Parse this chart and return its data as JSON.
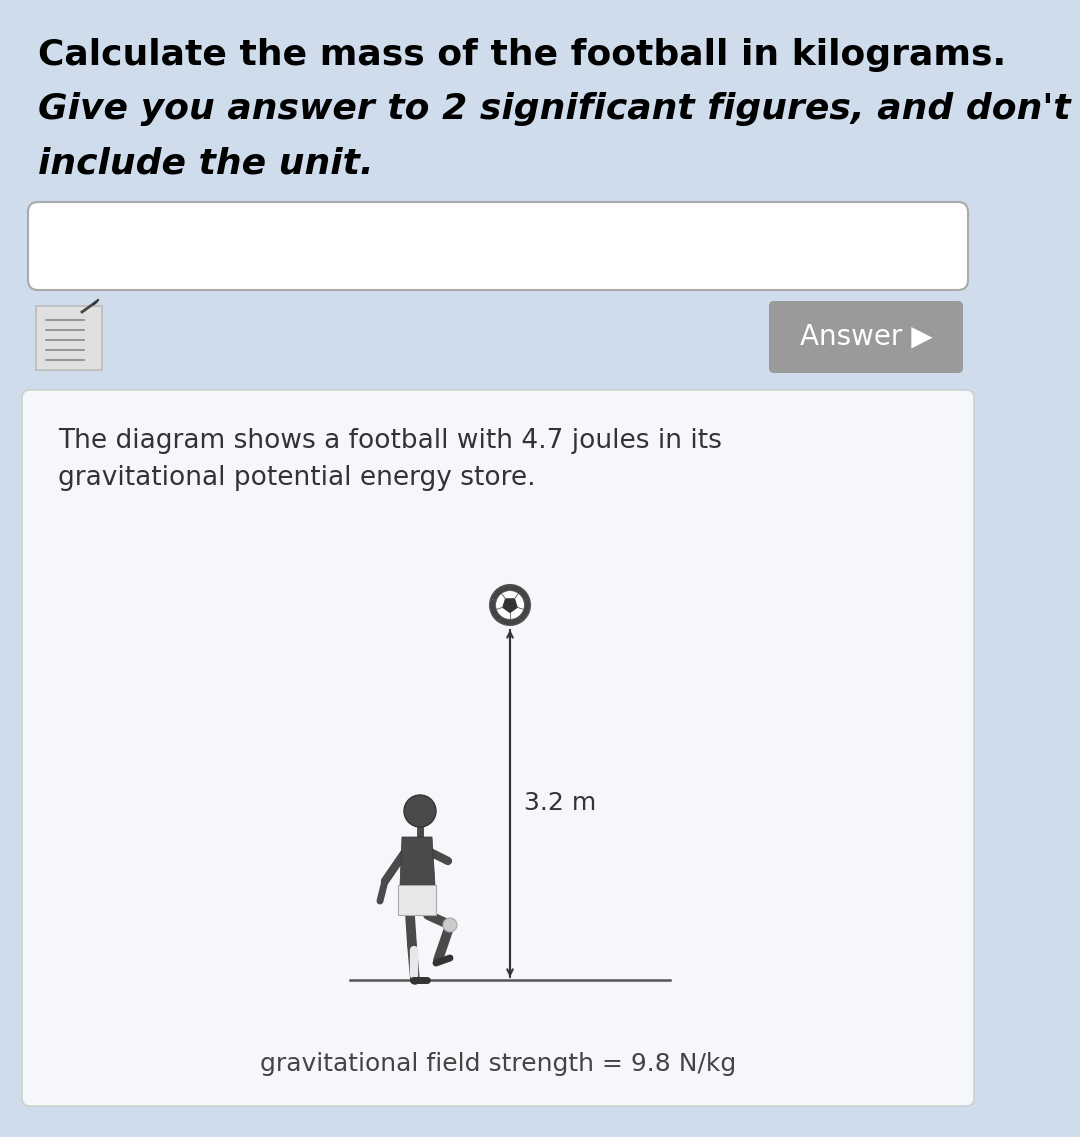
{
  "bg_color": "#cfdcec",
  "title_line1": "Calculate the mass of the football in kilograms.",
  "title_line2": "Give you answer to 2 significant figures, and don't",
  "title_line3": "include the unit.",
  "title_fontsize": 26,
  "input_box_color": "#ffffff",
  "input_box_border": "#aaaaaa",
  "answer_btn_color": "#9a9a9a",
  "answer_btn_text": "Answer ▶",
  "answer_btn_fontsize": 20,
  "info_panel_bg": "#f5f7fa",
  "info_panel_border": "#cccccc",
  "info_line1": "The diagram shows a football with 4.7 joules in its",
  "info_line2": "gravitational potential energy store.",
  "info_fontsize": 19,
  "height_label": "3.2 m",
  "gravity_label": "gravitational field strength = 9.8 N/kg",
  "gravity_fontsize": 18,
  "person_color": "#555555",
  "person_dark": "#333333",
  "ball_color": "#ffffff",
  "ball_edge": "#555555",
  "ground_color": "#555555",
  "arrow_color": "#333333"
}
